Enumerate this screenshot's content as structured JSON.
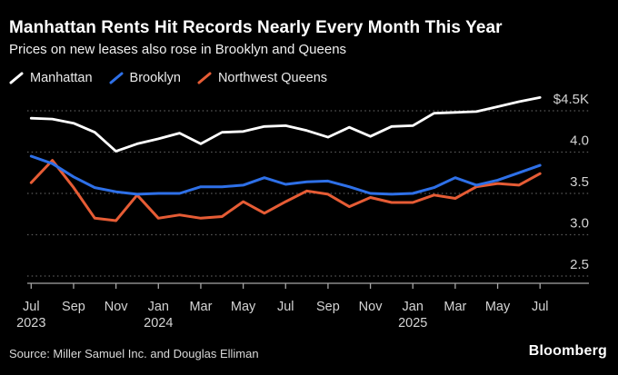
{
  "header": {
    "title": "Manhattan Rents Hit Records Nearly Every Month This Year",
    "subtitle": "Prices on new leases also rose in Brooklyn and Queens"
  },
  "footer": {
    "source": "Source: Miller Samuel Inc. and Douglas Elliman",
    "brand": "Bloomberg"
  },
  "colors": {
    "background": "#000000",
    "manhattan": "#ffffff",
    "brooklyn": "#2e70e8",
    "northwest_queens": "#e65c35",
    "gridline": "#5a5a5a",
    "axis": "#a6a6a6",
    "tick_label": "#d4d4d4"
  },
  "chart_data": {
    "type": "line",
    "title": "Manhattan Rents Hit Records Nearly Every Month This Year",
    "subtitle": "Prices on new leases also rose in Brooklyn and Queens",
    "unit": "thousands of US dollars per month",
    "grid": "horizontal-dotted",
    "legend_position": "top-left",
    "ylim": [
      2.35,
      4.75
    ],
    "x": [
      "Jul 2023",
      "Aug 2023",
      "Sep 2023",
      "Oct 2023",
      "Nov 2023",
      "Dec 2023",
      "Jan 2024",
      "Feb 2024",
      "Mar 2024",
      "Apr 2024",
      "May 2024",
      "Jun 2024",
      "Jul 2024",
      "Aug 2024",
      "Sep 2024",
      "Oct 2024",
      "Nov 2024",
      "Dec 2024",
      "Jan 2025",
      "Feb 2025",
      "Mar 2025",
      "Apr 2025",
      "May 2025",
      "Jun 2025",
      "Jul 2025"
    ],
    "series": [
      {
        "name": "Manhattan",
        "color": "#ffffff",
        "values": [
          4.41,
          4.4,
          4.35,
          4.24,
          4.01,
          4.1,
          4.16,
          4.23,
          4.1,
          4.24,
          4.25,
          4.31,
          4.32,
          4.26,
          4.18,
          4.3,
          4.19,
          4.31,
          4.32,
          4.47,
          4.48,
          4.49,
          4.55,
          4.61,
          4.66
        ]
      },
      {
        "name": "Brooklyn",
        "color": "#2e70e8",
        "values": [
          3.95,
          3.86,
          3.7,
          3.57,
          3.52,
          3.49,
          3.5,
          3.5,
          3.58,
          3.58,
          3.6,
          3.69,
          3.61,
          3.64,
          3.65,
          3.58,
          3.5,
          3.49,
          3.5,
          3.57,
          3.69,
          3.6,
          3.66,
          3.75,
          3.84
        ]
      },
      {
        "name": "Northwest Queens",
        "color": "#e65c35",
        "values": [
          3.63,
          3.9,
          3.57,
          3.2,
          3.17,
          3.48,
          3.2,
          3.24,
          3.2,
          3.22,
          3.4,
          3.26,
          3.4,
          3.53,
          3.49,
          3.34,
          3.45,
          3.39,
          3.39,
          3.48,
          3.44,
          3.58,
          3.62,
          3.6,
          3.74
        ]
      }
    ],
    "y_ticks": [
      {
        "value": 4.5,
        "label": "$4.5K"
      },
      {
        "value": 4.0,
        "label": "4.0"
      },
      {
        "value": 3.5,
        "label": "3.5"
      },
      {
        "value": 3.0,
        "label": "3.0"
      },
      {
        "value": 2.5,
        "label": "2.5"
      }
    ],
    "x_ticks": [
      {
        "index": 0,
        "label": "Jul",
        "year": "2023"
      },
      {
        "index": 2,
        "label": "Sep"
      },
      {
        "index": 4,
        "label": "Nov"
      },
      {
        "index": 6,
        "label": "Jan",
        "year": "2024"
      },
      {
        "index": 8,
        "label": "Mar"
      },
      {
        "index": 10,
        "label": "May"
      },
      {
        "index": 12,
        "label": "Jul"
      },
      {
        "index": 14,
        "label": "Sep"
      },
      {
        "index": 16,
        "label": "Nov"
      },
      {
        "index": 18,
        "label": "Jan",
        "year": "2025"
      },
      {
        "index": 20,
        "label": "Mar"
      },
      {
        "index": 22,
        "label": "May"
      },
      {
        "index": 24,
        "label": "Jul"
      }
    ]
  }
}
